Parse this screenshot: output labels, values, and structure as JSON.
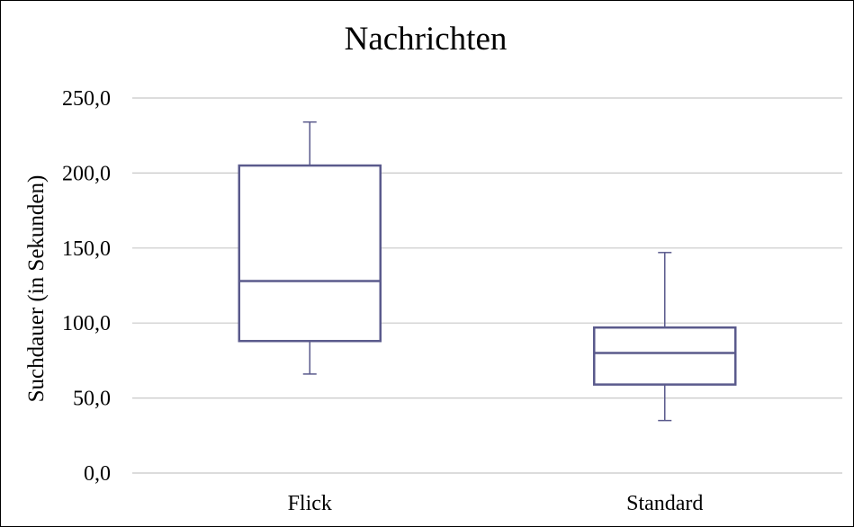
{
  "chart_data": {
    "type": "boxplot",
    "title": "Nachrichten",
    "xlabel": "",
    "ylabel": "Suchdauer (in Sekunden)",
    "ylim": [
      0,
      250
    ],
    "yticks": [
      0,
      50,
      100,
      150,
      200,
      250
    ],
    "ytick_labels": [
      "0,0",
      "50,0",
      "100,0",
      "150,0",
      "200,0",
      "250,0"
    ],
    "categories": [
      "Flick",
      "Standard"
    ],
    "boxes": [
      {
        "category": "Flick",
        "min": 66,
        "q1": 88,
        "median": 128,
        "q3": 205,
        "max": 234
      },
      {
        "category": "Standard",
        "min": 35,
        "q1": 59,
        "median": 80,
        "q3": 97,
        "max": 147
      }
    ],
    "grid": true,
    "colors": {
      "box": "#5a5a8c",
      "grid": "#c8c8c8",
      "text": "#000000"
    }
  }
}
